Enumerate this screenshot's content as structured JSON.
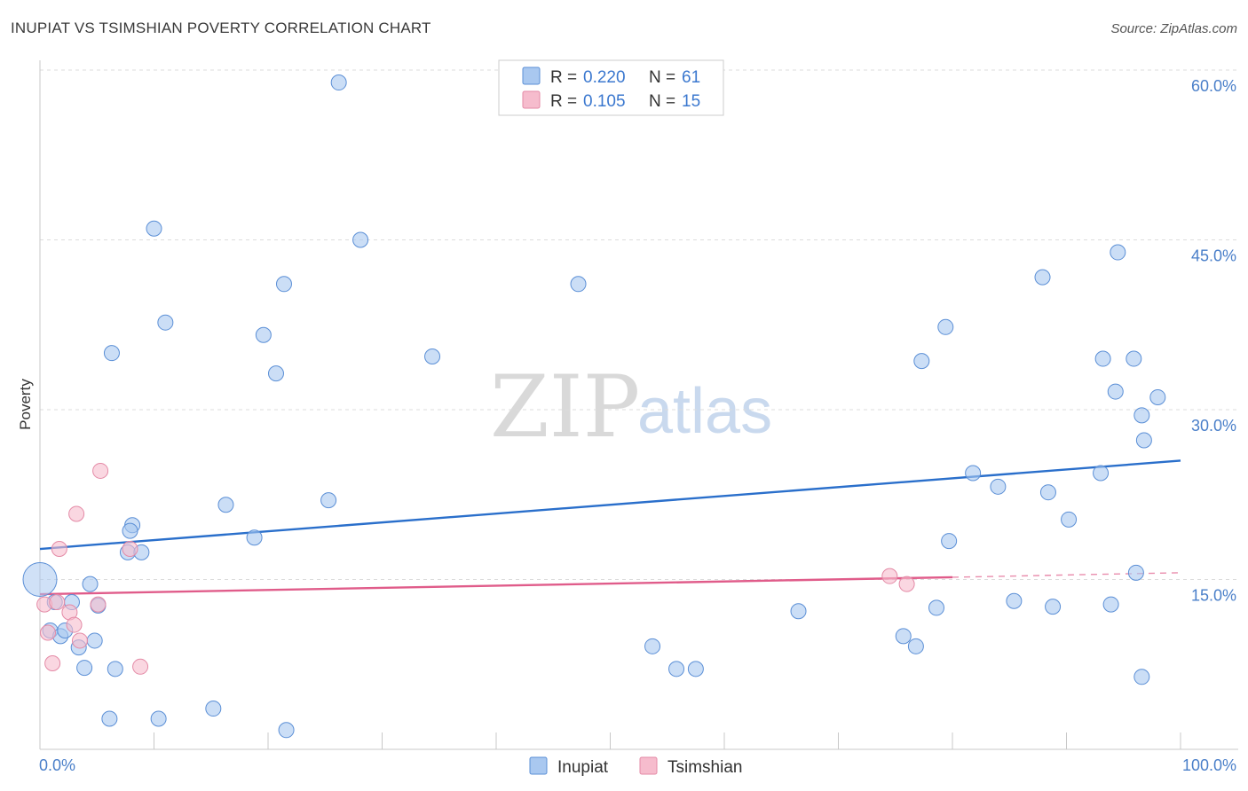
{
  "header": {
    "title": "INUPIAT VS TSIMSHIAN POVERTY CORRELATION CHART",
    "source": "Source: ZipAtlas.com"
  },
  "watermark": {
    "zip": "ZIP",
    "atlas": "atlas"
  },
  "legend": {
    "rows": [
      {
        "r_label": "R =",
        "r_value": "0.220",
        "n_label": "N =",
        "n_value": "61",
        "color": "#a9c8f0"
      },
      {
        "r_label": "R =",
        "r_value": "0.105",
        "n_label": "N =",
        "n_value": "15",
        "color": "#f6bccd"
      }
    ]
  },
  "bottom_legend": {
    "items": [
      {
        "label": "Inupiat",
        "color": "#a9c8f0"
      },
      {
        "label": "Tsimshian",
        "color": "#f6bccd"
      }
    ]
  },
  "chart_data": {
    "type": "scatter",
    "title": "INUPIAT VS TSIMSHIAN POVERTY CORRELATION CHART",
    "xlabel": "",
    "ylabel": "Poverty",
    "xlim": [
      0,
      100
    ],
    "ylim": [
      0,
      60
    ],
    "x_tick_labels": [
      "0.0%",
      "100.0%"
    ],
    "y_ticks": [
      15,
      30,
      45,
      60
    ],
    "y_tick_labels": [
      "15.0%",
      "30.0%",
      "45.0%",
      "60.0%"
    ],
    "grid": true,
    "series": [
      {
        "name": "Inupiat",
        "color": "#a9c8f0",
        "stroke": "#5b8fd6",
        "trend": {
          "x": [
            0,
            100
          ],
          "y": [
            17.7,
            25.5
          ],
          "color": "#2a6fcb"
        },
        "points": [
          [
            26.2,
            58.9
          ],
          [
            10.0,
            46.0
          ],
          [
            28.1,
            45.0
          ],
          [
            21.4,
            41.1
          ],
          [
            47.2,
            41.1
          ],
          [
            94.5,
            43.9
          ],
          [
            87.9,
            41.7
          ],
          [
            11.0,
            37.7
          ],
          [
            19.6,
            36.6
          ],
          [
            79.4,
            37.3
          ],
          [
            6.3,
            35.0
          ],
          [
            34.4,
            34.7
          ],
          [
            95.9,
            34.5
          ],
          [
            77.3,
            34.3
          ],
          [
            93.2,
            34.5
          ],
          [
            20.7,
            33.2
          ],
          [
            94.3,
            31.6
          ],
          [
            98.0,
            31.1
          ],
          [
            96.6,
            29.5
          ],
          [
            96.8,
            27.3
          ],
          [
            81.8,
            24.4
          ],
          [
            93.0,
            24.4
          ],
          [
            84.0,
            23.2
          ],
          [
            88.4,
            22.7
          ],
          [
            16.3,
            21.6
          ],
          [
            25.3,
            22.0
          ],
          [
            90.2,
            20.3
          ],
          [
            8.1,
            19.8
          ],
          [
            7.9,
            19.3
          ],
          [
            79.7,
            18.4
          ],
          [
            18.8,
            18.7
          ],
          [
            7.7,
            17.4
          ],
          [
            8.9,
            17.4
          ],
          [
            96.1,
            15.6
          ],
          [
            0.5,
            15.0
          ],
          [
            4.4,
            14.6
          ],
          [
            1.3,
            13.0
          ],
          [
            2.8,
            13.0
          ],
          [
            5.1,
            12.7
          ],
          [
            85.4,
            13.1
          ],
          [
            66.5,
            12.2
          ],
          [
            78.6,
            12.5
          ],
          [
            88.8,
            12.6
          ],
          [
            93.9,
            12.8
          ],
          [
            0.9,
            10.5
          ],
          [
            1.8,
            10.0
          ],
          [
            2.2,
            10.5
          ],
          [
            3.4,
            9.0
          ],
          [
            4.8,
            9.6
          ],
          [
            53.7,
            9.1
          ],
          [
            75.7,
            10.0
          ],
          [
            76.8,
            9.1
          ],
          [
            3.9,
            7.2
          ],
          [
            6.6,
            7.1
          ],
          [
            55.8,
            7.1
          ],
          [
            57.5,
            7.1
          ],
          [
            96.6,
            6.4
          ],
          [
            6.1,
            2.7
          ],
          [
            10.4,
            2.7
          ],
          [
            15.2,
            3.6
          ],
          [
            21.6,
            1.7
          ]
        ]
      },
      {
        "name": "Tsimshian",
        "color": "#f6bccd",
        "stroke": "#e48aa6",
        "trend": {
          "x": [
            0,
            80
          ],
          "y": [
            13.7,
            15.2
          ],
          "x_dashed": [
            80,
            100
          ],
          "y_dashed": [
            15.2,
            15.6
          ],
          "color": "#e05c8a"
        },
        "points": [
          [
            5.3,
            24.6
          ],
          [
            3.2,
            20.8
          ],
          [
            1.7,
            17.7
          ],
          [
            7.9,
            17.7
          ],
          [
            0.4,
            12.8
          ],
          [
            1.5,
            13.0
          ],
          [
            2.6,
            12.1
          ],
          [
            3.0,
            11.0
          ],
          [
            5.1,
            12.8
          ],
          [
            0.7,
            10.3
          ],
          [
            3.5,
            9.6
          ],
          [
            1.1,
            7.6
          ],
          [
            8.8,
            7.3
          ],
          [
            74.5,
            15.3
          ],
          [
            76.0,
            14.6
          ]
        ]
      }
    ]
  }
}
